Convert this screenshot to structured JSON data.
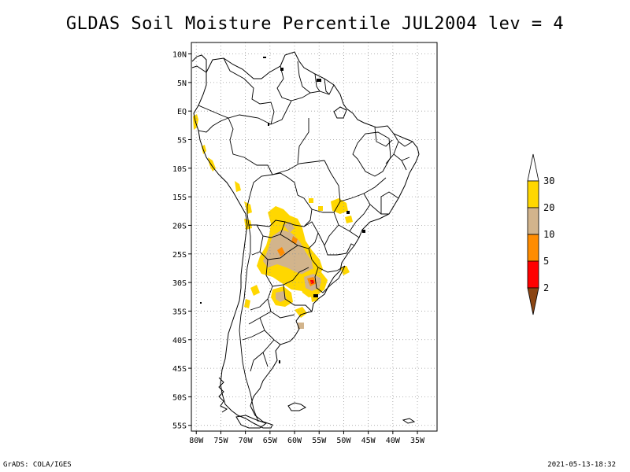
{
  "title": "GLDAS Soil Moisture Percentile JUL2004 lev = 4",
  "footer_left": "GrADS: COLA/IGES",
  "footer_right": "2021-05-13-18:32",
  "map": {
    "lon_range": [
      -81,
      -31
    ],
    "lat_range": [
      -56,
      12
    ],
    "grid": true,
    "lat_ticks": [
      {
        "value": 10,
        "label": "10N"
      },
      {
        "value": 5,
        "label": "5N"
      },
      {
        "value": 0,
        "label": "EQ"
      },
      {
        "value": -5,
        "label": "5S"
      },
      {
        "value": -10,
        "label": "10S"
      },
      {
        "value": -15,
        "label": "15S"
      },
      {
        "value": -20,
        "label": "20S"
      },
      {
        "value": -25,
        "label": "25S"
      },
      {
        "value": -30,
        "label": "30S"
      },
      {
        "value": -35,
        "label": "35S"
      },
      {
        "value": -40,
        "label": "40S"
      },
      {
        "value": -45,
        "label": "45S"
      },
      {
        "value": -50,
        "label": "50S"
      },
      {
        "value": -55,
        "label": "55S"
      }
    ],
    "lon_ticks": [
      {
        "value": -80,
        "label": "80W"
      },
      {
        "value": -75,
        "label": "75W"
      },
      {
        "value": -70,
        "label": "70W"
      },
      {
        "value": -65,
        "label": "65W"
      },
      {
        "value": -60,
        "label": "60W"
      },
      {
        "value": -55,
        "label": "55W"
      },
      {
        "value": -50,
        "label": "50W"
      },
      {
        "value": -45,
        "label": "45W"
      },
      {
        "value": -40,
        "label": "40W"
      },
      {
        "value": -35,
        "label": "35W"
      }
    ]
  },
  "colorbar": {
    "levels": [
      "2",
      "5",
      "10",
      "20",
      "30"
    ],
    "colors": [
      "#8b4513",
      "#ff0000",
      "#ff8c00",
      "#d2b48c",
      "#ffd700",
      "#ffffff"
    ]
  },
  "colors": {
    "yellow": "#ffd700",
    "tan": "#d2b48c",
    "orange": "#ff8c00",
    "red": "#ff0000",
    "brown": "#8b4513"
  }
}
